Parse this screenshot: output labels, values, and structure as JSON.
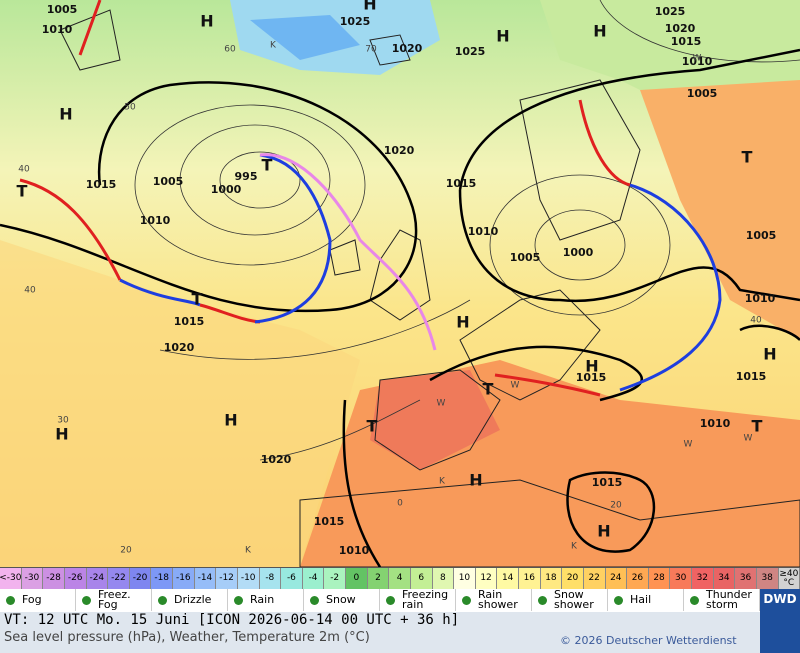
{
  "map": {
    "labels": [
      "1005",
      "1010",
      "H",
      "1025",
      "H",
      "1020",
      "1025",
      "H",
      "H",
      "1025",
      "1020",
      "1015",
      "1010",
      "1005",
      "H",
      "1015",
      "1005",
      "995",
      "T",
      "1000",
      "1010",
      "1020",
      "1015",
      "1010",
      "1005",
      "1000",
      "T",
      "1005",
      "1010",
      "H",
      "1015",
      "T",
      "T",
      "1015",
      "1020",
      "H",
      "H",
      "1015",
      "T",
      "T",
      "H",
      "H",
      "1020",
      "1010",
      "T",
      "H",
      "1015",
      "H",
      "1015",
      "1010",
      "60",
      "70",
      "50",
      "40",
      "40",
      "30",
      "20",
      "40",
      "20",
      "0",
      "K",
      "W",
      "W",
      "W",
      "W",
      "W",
      "K",
      "K",
      "K"
    ]
  },
  "legend": {
    "temperature": [
      {
        "label": "<-30",
        "color": "#f2b3ee"
      },
      {
        "label": "-30",
        "color": "#dba0e4"
      },
      {
        "label": "-28",
        "color": "#cc90e2"
      },
      {
        "label": "-26",
        "color": "#bb84e6"
      },
      {
        "label": "-24",
        "color": "#a884ea"
      },
      {
        "label": "-22",
        "color": "#9588ef"
      },
      {
        "label": "-20",
        "color": "#7e86f0"
      },
      {
        "label": "-18",
        "color": "#7d98f6"
      },
      {
        "label": "-16",
        "color": "#88abf7"
      },
      {
        "label": "-14",
        "color": "#96bdf8"
      },
      {
        "label": "-12",
        "color": "#a6cdf8"
      },
      {
        "label": "-10",
        "color": "#b3dcf6"
      },
      {
        "label": "-8",
        "color": "#a6e3ee"
      },
      {
        "label": "-6",
        "color": "#98e9df"
      },
      {
        "label": "-4",
        "color": "#9befce"
      },
      {
        "label": "-2",
        "color": "#aaf3bf"
      },
      {
        "label": "0",
        "color": "#63c364"
      },
      {
        "label": "2",
        "color": "#84d271"
      },
      {
        "label": "4",
        "color": "#a4e183"
      },
      {
        "label": "6",
        "color": "#c3ef95"
      },
      {
        "label": "8",
        "color": "#e0f7b1"
      },
      {
        "label": "10",
        "color": "#ffffe2"
      },
      {
        "label": "12",
        "color": "#ffffc2"
      },
      {
        "label": "14",
        "color": "#fffaa3"
      },
      {
        "label": "16",
        "color": "#fff293"
      },
      {
        "label": "18",
        "color": "#ffe982"
      },
      {
        "label": "20",
        "color": "#ffdf68"
      },
      {
        "label": "22",
        "color": "#ffd162"
      },
      {
        "label": "24",
        "color": "#ffbf55"
      },
      {
        "label": "26",
        "color": "#ffa853"
      },
      {
        "label": "28",
        "color": "#ff9353"
      },
      {
        "label": "30",
        "color": "#f87a5a"
      },
      {
        "label": "32",
        "color": "#f06363"
      },
      {
        "label": "34",
        "color": "#e96464"
      },
      {
        "label": "36",
        "color": "#e07272"
      },
      {
        "label": "38",
        "color": "#cf8583"
      },
      {
        "label": "≥40 °C",
        "color": "#d2d2d2"
      }
    ],
    "weather": [
      "Fog",
      "Freez. Fog",
      "Drizzle",
      "Rain",
      "Snow",
      "Freezing rain",
      "Rain shower",
      "Snow shower",
      "Hail",
      "Thunder storm"
    ]
  },
  "footer": {
    "valid_time": "VT: 12 UTC Mo.  15 Juni [ICON 2026-06-14  00 UTC + 36 h]",
    "description": "Sea level pressure (hPa), Weather, Temperature 2m (°C)",
    "copyright": "© 2026 Deutscher Wetterdienst",
    "logo": "DWD"
  }
}
